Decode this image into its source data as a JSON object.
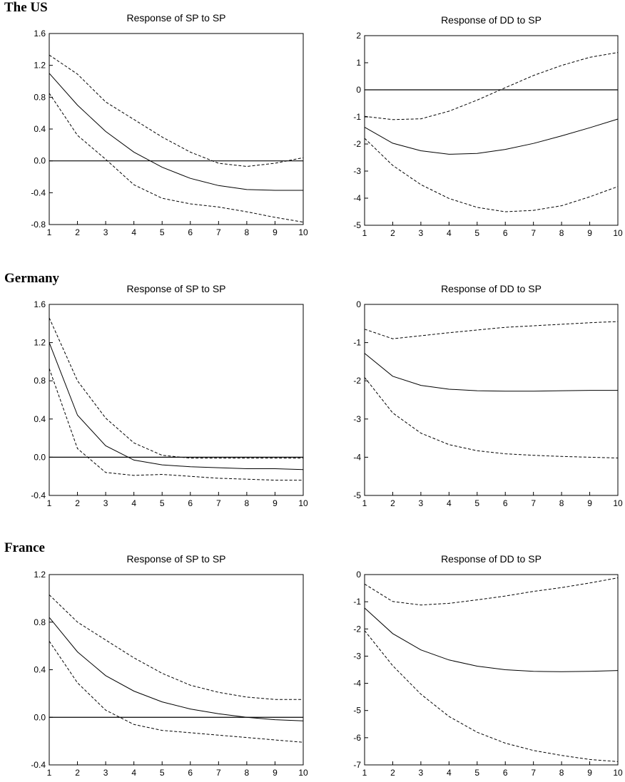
{
  "groups": [
    {
      "label": "The US"
    },
    {
      "label": "Germany"
    },
    {
      "label": "France"
    }
  ],
  "chart_data": [
    {
      "type": "line",
      "group": "The US",
      "title": "Response of SP to SP",
      "x": [
        1,
        2,
        3,
        4,
        5,
        6,
        7,
        8,
        9,
        10
      ],
      "ylim": [
        -0.8,
        1.6
      ],
      "yticks": [
        -0.8,
        -0.4,
        0.0,
        0.4,
        0.8,
        1.2,
        1.6
      ],
      "ytick_labels": [
        "-0.8",
        "-0.4",
        "0.0",
        "0.4",
        "0.8",
        "1.2",
        "1.6"
      ],
      "zero_line": true,
      "series": [
        {
          "style": "solid",
          "values": [
            1.1,
            0.7,
            0.37,
            0.11,
            -0.08,
            -0.22,
            -0.31,
            -0.36,
            -0.37,
            -0.37
          ]
        },
        {
          "style": "dashed",
          "values": [
            1.33,
            1.09,
            0.74,
            0.52,
            0.3,
            0.11,
            -0.03,
            -0.07,
            -0.03,
            0.04
          ]
        },
        {
          "style": "dashed",
          "values": [
            0.85,
            0.32,
            0.02,
            -0.3,
            -0.47,
            -0.54,
            -0.58,
            -0.64,
            -0.71,
            -0.77
          ]
        }
      ]
    },
    {
      "type": "line",
      "group": "The US",
      "title": "Response of DD to SP",
      "x": [
        1,
        2,
        3,
        4,
        5,
        6,
        7,
        8,
        9,
        10
      ],
      "ylim": [
        -5,
        2
      ],
      "yticks": [
        -5,
        -4,
        -3,
        -2,
        -1,
        0,
        1,
        2
      ],
      "ytick_labels": [
        "-5",
        "-4",
        "-3",
        "-2",
        "-1",
        "0",
        "1",
        "2"
      ],
      "zero_line": true,
      "series": [
        {
          "style": "solid",
          "values": [
            -1.38,
            -1.97,
            -2.25,
            -2.38,
            -2.35,
            -2.2,
            -1.98,
            -1.7,
            -1.4,
            -1.08
          ]
        },
        {
          "style": "dashed",
          "values": [
            -0.98,
            -1.1,
            -1.07,
            -0.79,
            -0.38,
            0.08,
            0.53,
            0.9,
            1.2,
            1.38
          ]
        },
        {
          "style": "dashed",
          "values": [
            -1.79,
            -2.79,
            -3.5,
            -4.01,
            -4.34,
            -4.5,
            -4.45,
            -4.28,
            -3.95,
            -3.57
          ]
        }
      ]
    },
    {
      "type": "line",
      "group": "Germany",
      "title": "Response of SP to SP",
      "x": [
        1,
        2,
        3,
        4,
        5,
        6,
        7,
        8,
        9,
        10
      ],
      "ylim": [
        -0.4,
        1.6
      ],
      "yticks": [
        -0.4,
        0.0,
        0.4,
        0.8,
        1.2,
        1.6
      ],
      "ytick_labels": [
        "-0.4",
        "0.0",
        "0.4",
        "0.8",
        "1.2",
        "1.6"
      ],
      "zero_line": true,
      "series": [
        {
          "style": "solid",
          "values": [
            1.2,
            0.44,
            0.12,
            -0.03,
            -0.08,
            -0.1,
            -0.11,
            -0.12,
            -0.12,
            -0.13
          ]
        },
        {
          "style": "dashed",
          "values": [
            1.46,
            0.8,
            0.41,
            0.15,
            0.02,
            -0.01,
            -0.01,
            -0.01,
            -0.01,
            -0.01
          ]
        },
        {
          "style": "dashed",
          "values": [
            0.93,
            0.09,
            -0.16,
            -0.19,
            -0.18,
            -0.2,
            -0.22,
            -0.23,
            -0.24,
            -0.24
          ]
        }
      ]
    },
    {
      "type": "line",
      "group": "Germany",
      "title": "Response of DD to SP",
      "x": [
        1,
        2,
        3,
        4,
        5,
        6,
        7,
        8,
        9,
        10
      ],
      "ylim": [
        -5,
        0
      ],
      "yticks": [
        -5,
        -4,
        -3,
        -2,
        -1,
        0
      ],
      "ytick_labels": [
        "-5",
        "-4",
        "-3",
        "-2",
        "-1",
        "0"
      ],
      "zero_line": false,
      "series": [
        {
          "style": "solid",
          "values": [
            -1.28,
            -1.88,
            -2.12,
            -2.22,
            -2.26,
            -2.27,
            -2.27,
            -2.26,
            -2.25,
            -2.25
          ]
        },
        {
          "style": "dashed",
          "values": [
            -0.65,
            -0.9,
            -0.82,
            -0.74,
            -0.67,
            -0.6,
            -0.56,
            -0.52,
            -0.48,
            -0.45
          ]
        },
        {
          "style": "dashed",
          "values": [
            -1.91,
            -2.84,
            -3.37,
            -3.67,
            -3.83,
            -3.91,
            -3.95,
            -3.98,
            -4.0,
            -4.02
          ]
        }
      ]
    },
    {
      "type": "line",
      "group": "France",
      "title": "Response of SP to SP",
      "x": [
        1,
        2,
        3,
        4,
        5,
        6,
        7,
        8,
        9,
        10
      ],
      "ylim": [
        -0.4,
        1.2
      ],
      "yticks": [
        -0.4,
        0.0,
        0.4,
        0.8,
        1.2
      ],
      "ytick_labels": [
        "-0.4",
        "0.0",
        "0.4",
        "0.8",
        "1.2"
      ],
      "zero_line": true,
      "series": [
        {
          "style": "solid",
          "values": [
            0.84,
            0.55,
            0.35,
            0.22,
            0.13,
            0.07,
            0.03,
            0.0,
            -0.02,
            -0.03
          ]
        },
        {
          "style": "dashed",
          "values": [
            1.03,
            0.8,
            0.65,
            0.5,
            0.37,
            0.27,
            0.21,
            0.17,
            0.15,
            0.15
          ]
        },
        {
          "style": "dashed",
          "values": [
            0.64,
            0.29,
            0.06,
            -0.06,
            -0.11,
            -0.13,
            -0.15,
            -0.17,
            -0.19,
            -0.21
          ]
        }
      ]
    },
    {
      "type": "line",
      "group": "France",
      "title": "Response of DD to SP",
      "x": [
        1,
        2,
        3,
        4,
        5,
        6,
        7,
        8,
        9,
        10
      ],
      "ylim": [
        -7,
        0
      ],
      "yticks": [
        -7,
        -6,
        -5,
        -4,
        -3,
        -2,
        -1,
        0
      ],
      "ytick_labels": [
        "-7",
        "-6",
        "-5",
        "-4",
        "-3",
        "-2",
        "-1",
        "0"
      ],
      "zero_line": false,
      "series": [
        {
          "style": "solid",
          "values": [
            -1.23,
            -2.17,
            -2.77,
            -3.14,
            -3.37,
            -3.5,
            -3.56,
            -3.57,
            -3.56,
            -3.53
          ]
        },
        {
          "style": "dashed",
          "values": [
            -0.35,
            -0.99,
            -1.12,
            -1.06,
            -0.93,
            -0.79,
            -0.62,
            -0.48,
            -0.31,
            -0.12
          ]
        },
        {
          "style": "dashed",
          "values": [
            -2.06,
            -3.35,
            -4.4,
            -5.22,
            -5.8,
            -6.2,
            -6.47,
            -6.65,
            -6.8,
            -6.88
          ]
        }
      ]
    }
  ]
}
